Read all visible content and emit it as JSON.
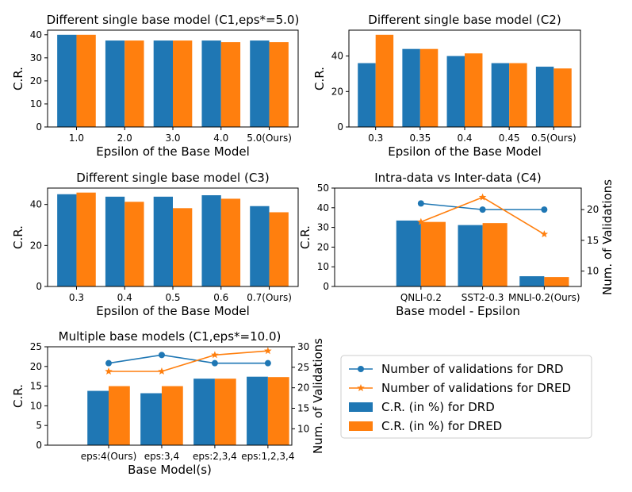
{
  "colors": {
    "drd": "#1f77b4",
    "dred": "#ff7f0e"
  },
  "legend": {
    "entries": [
      {
        "label": "Number of validations for DRD",
        "kind": "line",
        "marker": "circle",
        "color": "#1f77b4"
      },
      {
        "label": "Number of validations for DRED",
        "kind": "line",
        "marker": "star",
        "color": "#ff7f0e"
      },
      {
        "label": "C.R. (in %) for DRD",
        "kind": "bar",
        "color": "#1f77b4"
      },
      {
        "label": "C.R. (in %) for DRED",
        "kind": "bar",
        "color": "#ff7f0e"
      }
    ]
  },
  "chart_data": [
    {
      "id": "c1",
      "type": "bar",
      "title": "Different single base model (C1,eps*=5.0)",
      "xlabel": "Epsilon of the Base Model",
      "ylabel": "C.R.",
      "categories": [
        "1.0",
        "2.0",
        "3.0",
        "4.0",
        "5.0(Ours)"
      ],
      "series": [
        {
          "name": "DRD",
          "values": [
            40,
            37.5,
            37.5,
            37.5,
            37.5
          ]
        },
        {
          "name": "DRED",
          "values": [
            40,
            37.5,
            37.5,
            36.8,
            36.8
          ]
        }
      ],
      "ylim": [
        0,
        42
      ],
      "yticks": [
        0,
        10,
        20,
        30,
        40
      ]
    },
    {
      "id": "c2",
      "type": "bar",
      "title": "Different single base model (C2)",
      "xlabel": "Epsilon of the Base Model",
      "ylabel": "C.R.",
      "categories": [
        "0.3",
        "0.35",
        "0.4",
        "0.45",
        "0.5(Ours)"
      ],
      "series": [
        {
          "name": "DRD",
          "values": [
            36,
            44,
            40,
            36,
            34
          ]
        },
        {
          "name": "DRED",
          "values": [
            52,
            44,
            41.5,
            36,
            33
          ]
        }
      ],
      "ylim": [
        0,
        54.6
      ],
      "yticks": [
        0,
        20,
        40
      ]
    },
    {
      "id": "c3",
      "type": "bar",
      "title": "Different single base model (C3)",
      "xlabel": "Epsilon of the Base Model",
      "ylabel": "C.R.",
      "categories": [
        "0.3",
        "0.4",
        "0.5",
        "0.6",
        "0.7(Ours)"
      ],
      "series": [
        {
          "name": "DRD",
          "values": [
            45,
            43.8,
            43.8,
            44.5,
            39.2
          ]
        },
        {
          "name": "DRED",
          "values": [
            45.8,
            41.3,
            38.2,
            42.8,
            36.2
          ]
        }
      ],
      "ylim": [
        0,
        48
      ],
      "yticks": [
        0,
        20,
        40
      ]
    },
    {
      "id": "c4",
      "type": "bar+line",
      "title": "Intra-data vs Inter-data (C4)",
      "xlabel": "Base model - Epsilon",
      "ylabel": "C.R.",
      "y2label": "Num. of Validations",
      "categories": [
        "QNLI-0.2",
        "SST2-0.3",
        "MNLI-0.2(Ours)"
      ],
      "series": [
        {
          "name": "DRD",
          "values": [
            33.5,
            31.2,
            5.2
          ]
        },
        {
          "name": "DRED",
          "values": [
            32.8,
            32.2,
            4.8
          ]
        }
      ],
      "lines": [
        {
          "name": "DRD",
          "values": [
            21,
            20,
            20
          ]
        },
        {
          "name": "DRED",
          "values": [
            18,
            22,
            16
          ]
        }
      ],
      "ylim": [
        0,
        50
      ],
      "yticks": [
        0,
        10,
        20,
        30,
        40,
        50
      ],
      "y2lim": [
        7.5,
        23.5
      ],
      "y2ticks": [
        10,
        15,
        20
      ]
    },
    {
      "id": "c5",
      "type": "bar+line",
      "title": "Multiple base models (C1,eps*=10.0)",
      "xlabel": "Base Model(s)",
      "ylabel": "C.R.",
      "y2label": "Num. of Validations",
      "categories": [
        "eps:4(Ours)",
        "eps:3,4",
        "eps:2,3,4",
        "eps:1,2,3,4"
      ],
      "series": [
        {
          "name": "DRD",
          "values": [
            13.8,
            13.2,
            16.9,
            17.4
          ]
        },
        {
          "name": "DRED",
          "values": [
            15,
            15,
            16.9,
            17.3
          ]
        }
      ],
      "lines": [
        {
          "name": "DRD",
          "values": [
            26,
            28,
            26,
            26
          ]
        },
        {
          "name": "DRED",
          "values": [
            24,
            24,
            28,
            29
          ]
        }
      ],
      "ylim": [
        0,
        25
      ],
      "yticks": [
        0,
        5,
        10,
        15,
        20,
        25
      ],
      "y2lim": [
        6,
        30
      ],
      "y2ticks": [
        10,
        15,
        20,
        25,
        30
      ]
    }
  ]
}
